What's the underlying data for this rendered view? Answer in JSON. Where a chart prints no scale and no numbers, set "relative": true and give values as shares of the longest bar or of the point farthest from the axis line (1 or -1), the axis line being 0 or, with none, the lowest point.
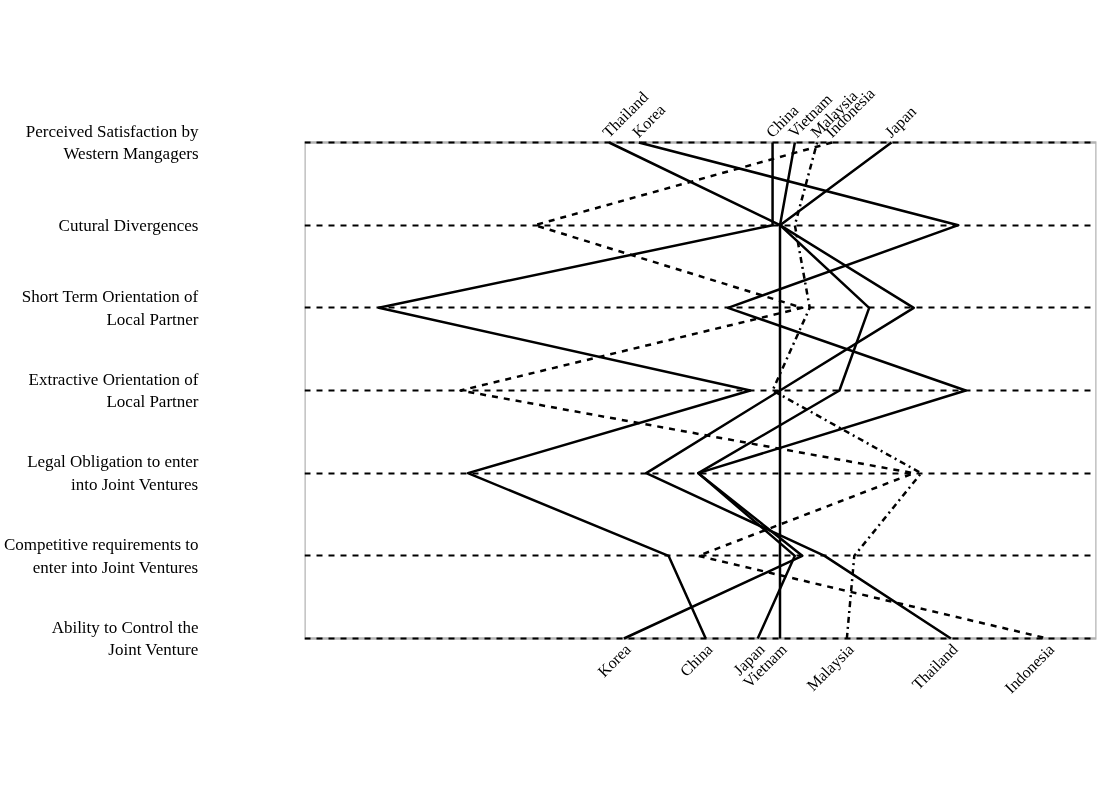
{
  "chart_data": {
    "type": "line",
    "orientation": "horizontal",
    "relative": true,
    "grid": "y",
    "marker": "none",
    "categories": [
      "Perceived Satisfaction by Western Mangagers",
      "Cutural Divergences",
      "Short Term Orientation of Local Partner",
      "Extractive Orientation of Local Partner",
      "Legal Obligation to enter into Joint Ventures",
      "Competitive requirements to enter into Joint Ventures",
      "Ability to Control the Joint Venture"
    ],
    "series": [
      {
        "name": "Thailand",
        "color": "#000000",
        "line_style": "solid",
        "values": [
          0.41,
          0.64,
          0.82,
          0.64,
          0.46,
          0.7,
          0.87
        ]
      },
      {
        "name": "Korea",
        "color": "#000000",
        "line_style": "solid",
        "values": [
          0.45,
          0.88,
          0.57,
          0.89,
          0.53,
          0.67,
          0.43
        ]
      },
      {
        "name": "China",
        "color": "#000000",
        "line_style": "solid",
        "values": [
          0.63,
          0.63,
          0.1,
          0.6,
          0.22,
          0.49,
          0.54
        ]
      },
      {
        "name": "Japan",
        "color": "#000000",
        "line_style": "solid",
        "values": [
          0.79,
          0.64,
          0.76,
          0.72,
          0.53,
          0.66,
          0.61
        ]
      },
      {
        "name": "Vietnam",
        "color": "#000000",
        "line_style": "solid",
        "values": [
          0.66,
          0.64,
          0.64,
          0.64,
          0.64,
          0.64,
          0.64
        ]
      },
      {
        "name": "Malaysia",
        "color": "#000000",
        "line_style": "dotted",
        "values": [
          0.69,
          0.66,
          0.68,
          0.63,
          0.83,
          0.74,
          0.73
        ]
      },
      {
        "name": "Indonesia",
        "color": "#000000",
        "line_style": "dashed",
        "values": [
          0.71,
          0.31,
          0.67,
          0.21,
          0.82,
          0.53,
          1.0
        ]
      }
    ]
  }
}
